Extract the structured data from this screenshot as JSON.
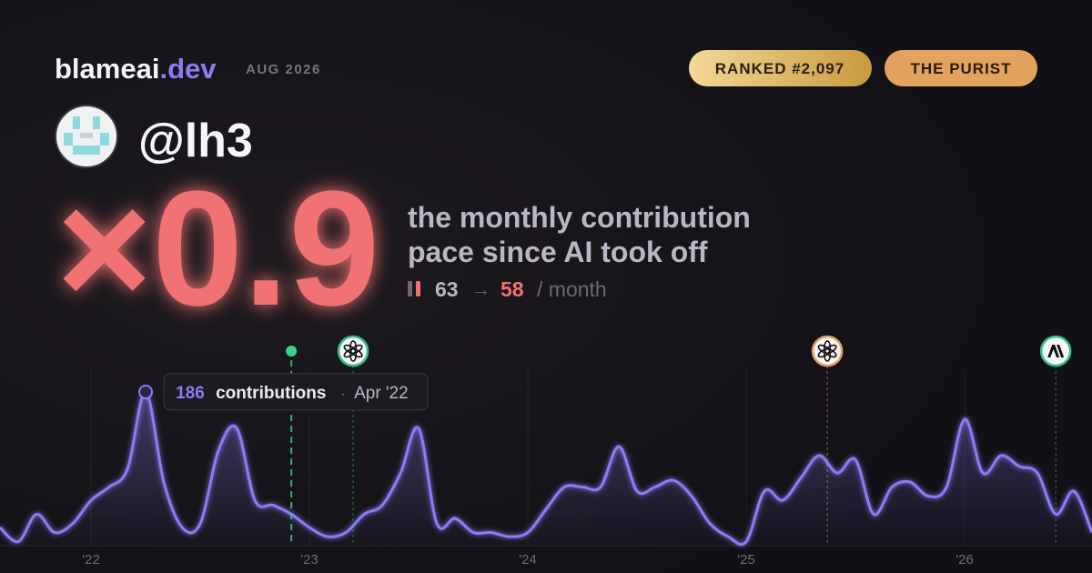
{
  "header": {
    "brand": "blameai",
    "brand_tld": ".dev",
    "period": "AUG 2026",
    "badges": [
      "RANKED #2,097",
      "THE PURIST"
    ],
    "handle": "@lh3"
  },
  "headline": {
    "multiplier": "×0.9",
    "description": [
      "the monthly contribution",
      "pace since AI took off"
    ],
    "before": "63",
    "arrow": "→",
    "after": "58",
    "unit": "/ month"
  },
  "chart_data": {
    "type": "line",
    "color": "#8b7cf6",
    "x": [
      2021.583,
      2021.667,
      2021.75,
      2021.833,
      2021.917,
      2022,
      2022.083,
      2022.167,
      2022.25,
      2022.333,
      2022.417,
      2022.5,
      2022.583,
      2022.667,
      2022.75,
      2022.833,
      2022.917,
      2023,
      2023.083,
      2023.167,
      2023.25,
      2023.333,
      2023.417,
      2023.5,
      2023.583,
      2023.667,
      2023.75,
      2023.833,
      2023.917,
      2024,
      2024.083,
      2024.167,
      2024.25,
      2024.333,
      2024.417,
      2024.5,
      2024.583,
      2024.667,
      2024.75,
      2024.833,
      2024.917,
      2025,
      2025.083,
      2025.167,
      2025.25,
      2025.333,
      2025.417,
      2025.5,
      2025.583,
      2025.667,
      2025.75,
      2025.833,
      2025.917,
      2026,
      2026.083,
      2026.167,
      2026.25,
      2026.333,
      2026.417,
      2026.5,
      2026.583
    ],
    "values": [
      22,
      5,
      38,
      16,
      27,
      55,
      71,
      93,
      186,
      77,
      22,
      27,
      115,
      142,
      55,
      49,
      38,
      22,
      11,
      16,
      38,
      49,
      88,
      142,
      27,
      33,
      16,
      16,
      11,
      16,
      44,
      71,
      71,
      71,
      120,
      66,
      71,
      79,
      60,
      27,
      11,
      5,
      66,
      55,
      82,
      109,
      88,
      104,
      38,
      71,
      77,
      60,
      71,
      153,
      88,
      109,
      96,
      88,
      38,
      66,
      16
    ],
    "xlim": [
      2021.583,
      2026.583
    ],
    "ylim": [
      0,
      220
    ],
    "xticks": [
      {
        "value": 2022,
        "label": "'22"
      },
      {
        "value": 2023,
        "label": "'23"
      },
      {
        "value": 2024,
        "label": "'24"
      },
      {
        "value": 2025,
        "label": "'25"
      },
      {
        "value": 2026,
        "label": "'26"
      }
    ],
    "grid": true,
    "events": [
      {
        "x": 2022.917,
        "color": "#3ecf8e",
        "icon": "dot"
      },
      {
        "x": 2023.2,
        "color": "#2fbf8a",
        "icon": "openai"
      },
      {
        "x": 2025.371,
        "color": "#e0a060",
        "icon": "openai"
      },
      {
        "x": 2026.417,
        "color": "#2fbf8a",
        "icon": "anthropic"
      }
    ],
    "tooltip": {
      "x": 2022.25,
      "value": 186,
      "unit": "contributions",
      "separator": "·",
      "label": "Apr '22"
    }
  }
}
